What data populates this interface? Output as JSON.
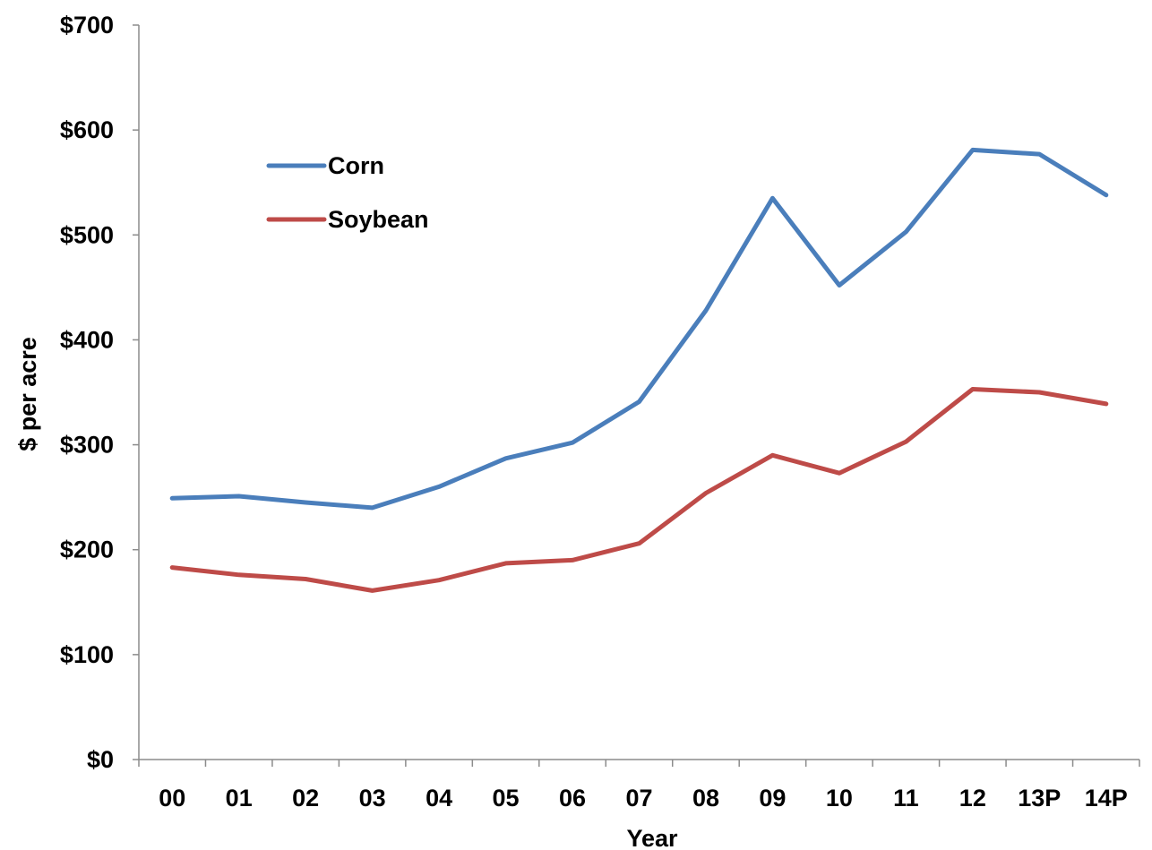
{
  "chart_data": {
    "type": "line",
    "xlabel": "Year",
    "ylabel": "$ per acre",
    "categories": [
      "00",
      "01",
      "02",
      "03",
      "04",
      "05",
      "06",
      "07",
      "08",
      "09",
      "10",
      "11",
      "12",
      "13P",
      "14P"
    ],
    "yticks": [
      "$0",
      "$100",
      "$200",
      "$300",
      "$400",
      "$500",
      "$600",
      "$700"
    ],
    "ylim": [
      0,
      700
    ],
    "grid": false,
    "legend_position": "top-left",
    "series": [
      {
        "name": "Corn",
        "color": "#4A7EBB",
        "values": [
          249,
          251,
          245,
          240,
          260,
          287,
          302,
          341,
          428,
          535,
          452,
          503,
          581,
          577,
          538
        ]
      },
      {
        "name": "Soybean",
        "color": "#BE4B48",
        "values": [
          183,
          176,
          172,
          161,
          171,
          187,
          190,
          206,
          254,
          290,
          273,
          303,
          353,
          350,
          339
        ]
      }
    ]
  }
}
